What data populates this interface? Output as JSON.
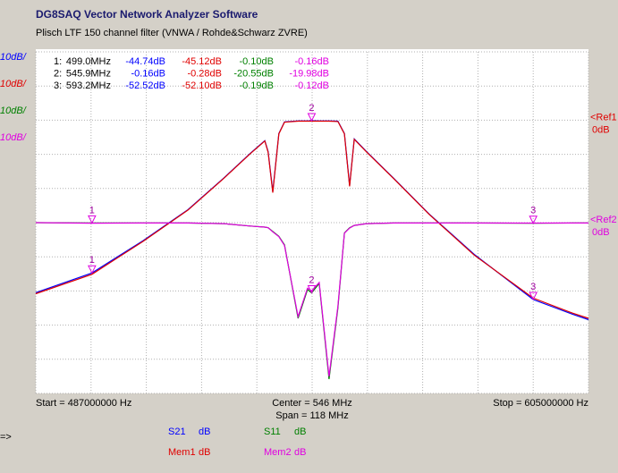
{
  "header": {
    "title": "DG8SAQ Vector Network Analyzer Software",
    "subtitle": "Plisch LTF 150 channel filter (VNWA / Rohde&Schwarz ZVRE)"
  },
  "scales": [
    {
      "label": "10dB/",
      "color": "#0000ff"
    },
    {
      "label": "10dB/",
      "color": "#e00000"
    },
    {
      "label": "10dB/",
      "color": "#008000"
    },
    {
      "label": "10dB/",
      "color": "#e000e0"
    }
  ],
  "marker_table": {
    "rows": [
      [
        "1:",
        "499.0MHz",
        "-44.74dB",
        "-45.12dB",
        "-0.10dB",
        "-0.16dB"
      ],
      [
        "2:",
        "545.9MHz",
        "-0.16dB",
        "-0.28dB",
        "-20.55dB",
        "-19.98dB"
      ],
      [
        "3:",
        "593.2MHz",
        "-52.52dB",
        "-52.10dB",
        "-0.19dB",
        "-0.12dB"
      ]
    ]
  },
  "chart_data": {
    "type": "line",
    "x": [
      487.0,
      499.0,
      509.9,
      519.5,
      527.1,
      532.8,
      535.9,
      536.6,
      537.6,
      538.9,
      540.1,
      543.0,
      545.0,
      545.9,
      547.5,
      549.6,
      551.5,
      552.9,
      554.0,
      555.0,
      557.6,
      563.4,
      571.0,
      580.6,
      593.2,
      601.6,
      605.0
    ],
    "xlim": [
      487,
      605
    ],
    "xticks": [
      487,
      498.8,
      510.6,
      522.4,
      534.2,
      546,
      557.8,
      569.6,
      581.4,
      593.2,
      605
    ],
    "ylim": [
      -80,
      20
    ],
    "yticks": [
      -80,
      -70,
      -60,
      -50,
      -40,
      -30,
      -20,
      -10,
      0,
      10,
      20
    ],
    "y2lim": [
      -50,
      50
    ],
    "grid": true,
    "series": [
      {
        "name": "S21",
        "color": "#0000ff",
        "values": [
          -50.5,
          -44.74,
          -35.3,
          -26.2,
          -17,
          -9.7,
          -6.0,
          -9.2,
          -20.9,
          -3.9,
          -0.5,
          -0.2,
          -0.2,
          -0.16,
          -0.2,
          -0.2,
          -0.3,
          -3.9,
          -19.1,
          -5.5,
          -9.2,
          -17,
          -27.5,
          -39.3,
          -52.52,
          -56.8,
          -58.4
        ]
      },
      {
        "name": "Mem1",
        "color": "#e00000",
        "values": [
          -50.8,
          -45.12,
          -35.5,
          -26.3,
          -17.1,
          -9.8,
          -6.1,
          -9.4,
          -21.2,
          -4.0,
          -0.6,
          -0.3,
          -0.3,
          -0.28,
          -0.3,
          -0.3,
          -0.4,
          -4.0,
          -19.4,
          -5.6,
          -9.3,
          -17.1,
          -27.6,
          -39.5,
          -52.1,
          -56.5,
          -58.0
        ]
      },
      {
        "name": "S11",
        "color": "#008000",
        "axis": "y2",
        "values": [
          0,
          -0.1,
          -0.1,
          -0.1,
          -0.3,
          -1.0,
          -1.3,
          -1.5,
          -2.6,
          -4.0,
          -6.5,
          -28,
          -19.6,
          -20.55,
          -17.8,
          -45.8,
          -25,
          -3.0,
          -1.5,
          -0.8,
          -0.3,
          -0.1,
          -0.1,
          -0.1,
          -0.19,
          -0.1,
          -0.1
        ]
      },
      {
        "name": "Mem2",
        "color": "#e000e0",
        "axis": "y2",
        "values": [
          0,
          -0.16,
          -0.1,
          -0.1,
          -0.3,
          -1.0,
          -1.3,
          -1.5,
          -2.7,
          -4.1,
          -6.7,
          -27.5,
          -19.2,
          -19.98,
          -17.5,
          -45.0,
          -24.5,
          -3.1,
          -1.6,
          -0.8,
          -0.3,
          -0.1,
          -0.1,
          -0.1,
          -0.12,
          -0.1,
          -0.1
        ]
      }
    ],
    "markers": [
      {
        "label": "1",
        "x": 499.0
      },
      {
        "label": "2",
        "x": 545.9
      },
      {
        "label": "3",
        "x": 593.2
      }
    ],
    "refs": [
      {
        "label": "<Ref1",
        "level": "0dB",
        "axis": "y",
        "value": 0,
        "color": "#e00000"
      },
      {
        "label": "<Ref2",
        "level": "0dB",
        "axis": "y2",
        "value": 0,
        "color": "#e000e0"
      }
    ],
    "start_label": "Start = 487000000 Hz",
    "center_label": "Center = 546 MHz",
    "span_label": "Span = 118 MHz",
    "stop_label": "Stop = 605000000 Hz",
    "legend_unit": "dB"
  },
  "prompt": "=>"
}
